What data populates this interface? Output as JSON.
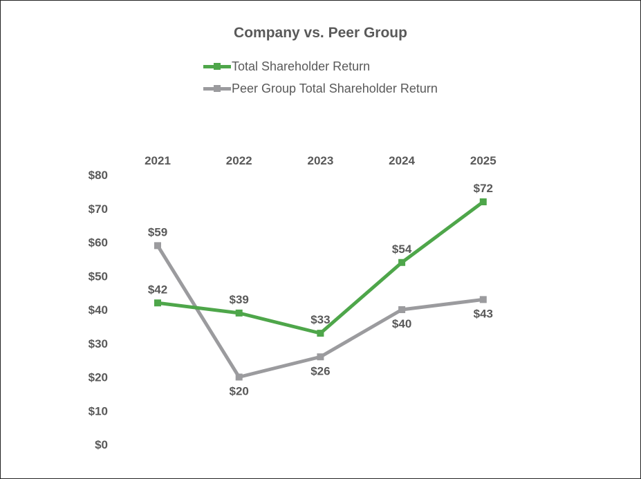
{
  "chart_data": {
    "type": "line",
    "title": "Company vs. Peer Group",
    "categories": [
      "2021",
      "2022",
      "2023",
      "2024",
      "2025"
    ],
    "series": [
      {
        "name": "Total Shareholder Return",
        "values": [
          42,
          39,
          33,
          54,
          72
        ],
        "labels": [
          "$42",
          "$39",
          "$33",
          "$54",
          "$72"
        ],
        "color": "#4ea64a"
      },
      {
        "name": "Peer Group Total Shareholder Return",
        "values": [
          59,
          20,
          26,
          40,
          43
        ],
        "labels": [
          "$59",
          "$20",
          "$26",
          "$40",
          "$43"
        ],
        "color": "#9b9b9e"
      }
    ],
    "ylim": [
      0,
      80
    ],
    "y_ticks": [
      80,
      70,
      60,
      50,
      40,
      30,
      20,
      10,
      0
    ],
    "y_tick_labels": [
      "$80",
      "$70",
      "$60",
      "$50",
      "$40",
      "$30",
      "$20",
      "$10",
      "$0"
    ],
    "x_axis_position": "top",
    "legend_position": "top",
    "grid": false,
    "xlabel": "",
    "ylabel": ""
  }
}
